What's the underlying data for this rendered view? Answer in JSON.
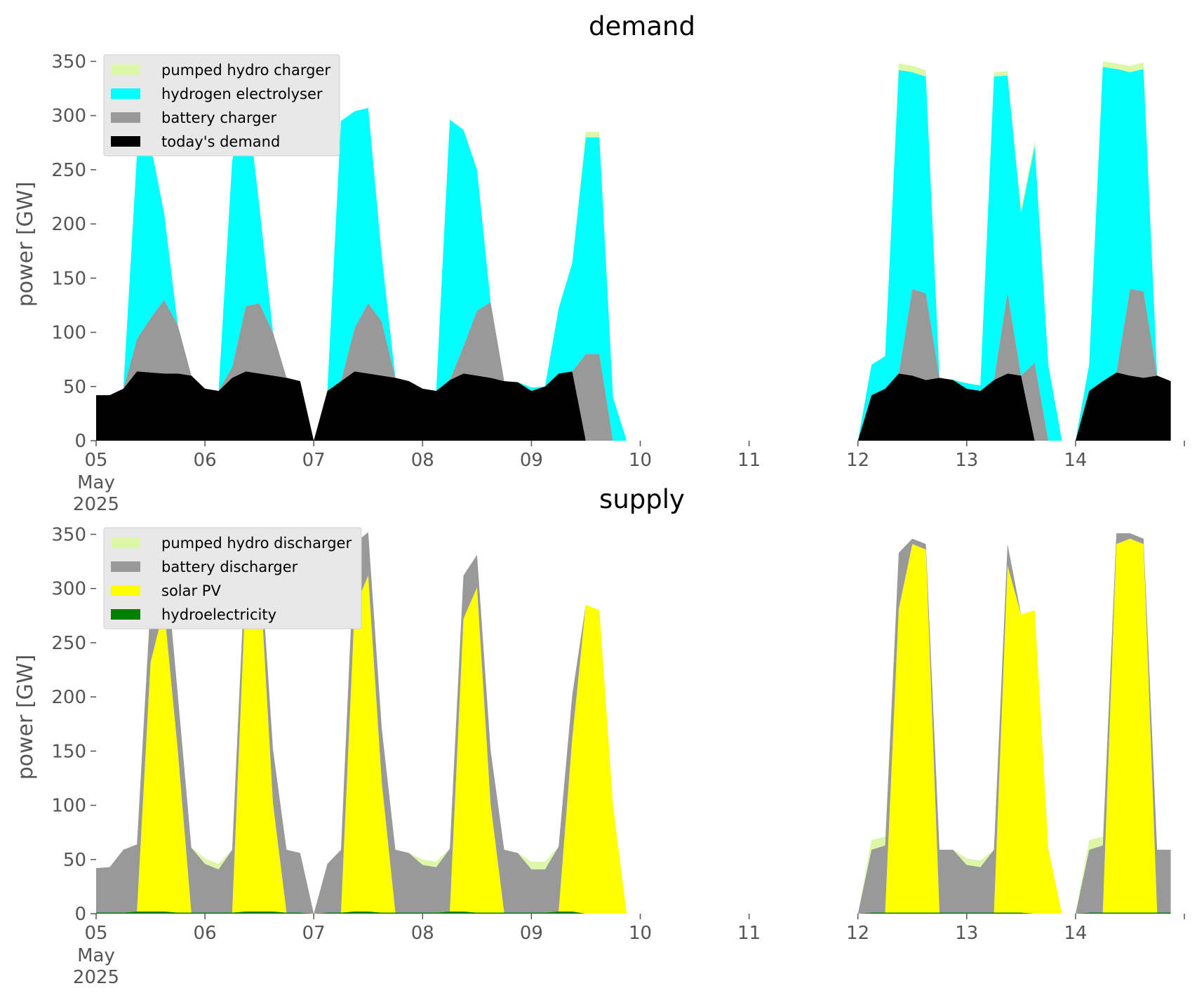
{
  "chart_data": [
    {
      "type": "area",
      "title": "demand",
      "ylabel": "power [GW]",
      "xlabel": "",
      "x_axis": {
        "ticks": [
          "05",
          "06",
          "07",
          "08",
          "09",
          "10",
          "11",
          "12",
          "13",
          "14"
        ],
        "first_tick_sublabel": [
          "May",
          "2025"
        ],
        "start": "2025-05-05 00:00",
        "end": "2025-05-14 24:00",
        "step_hours": 3
      },
      "ylim": [
        0,
        360
      ],
      "yticks": [
        0,
        50,
        100,
        150,
        200,
        250,
        300,
        350
      ],
      "grid": false,
      "stacked": true,
      "legend_position": "top-left",
      "legend": [
        "pumped hydro charger",
        "hydrogen electrolyser",
        "battery charger",
        "today's demand"
      ],
      "series": [
        {
          "name": "today's demand",
          "color": "#000000",
          "values": [
            42,
            42,
            48,
            64,
            63,
            62,
            62,
            60,
            48,
            46,
            58,
            64,
            62,
            60,
            58,
            55,
            0,
            46,
            55,
            64,
            62,
            60,
            58,
            55,
            48,
            46,
            56,
            62,
            60,
            58,
            55,
            54,
            46,
            50,
            62,
            64,
            0,
            0,
            0,
            0,
            null,
            null,
            null,
            null,
            null,
            null,
            null,
            null,
            null,
            null,
            null,
            null,
            null,
            null,
            null,
            null,
            0,
            42,
            48,
            62,
            60,
            56,
            58,
            56,
            48,
            46,
            56,
            62,
            60,
            0,
            0,
            0,
            0,
            46,
            55,
            63,
            60,
            58,
            60,
            55
          ]
        },
        {
          "name": "battery charger",
          "color": "#999999",
          "values": [
            0,
            0,
            0,
            30,
            50,
            68,
            45,
            0,
            0,
            0,
            10,
            60,
            65,
            40,
            0,
            0,
            0,
            0,
            0,
            40,
            65,
            50,
            0,
            0,
            0,
            0,
            0,
            25,
            60,
            70,
            0,
            0,
            0,
            0,
            0,
            0,
            80,
            80,
            0,
            0,
            null,
            null,
            null,
            null,
            null,
            null,
            null,
            null,
            null,
            null,
            null,
            null,
            null,
            null,
            null,
            null,
            0,
            0,
            0,
            0,
            80,
            80,
            0,
            0,
            0,
            0,
            0,
            75,
            0,
            72,
            0,
            0,
            0,
            0,
            0,
            0,
            80,
            80,
            0,
            0
          ]
        },
        {
          "name": "hydrogen electrolyser",
          "color": "#00ffff",
          "values": [
            0,
            0,
            0,
            170,
            160,
            80,
            0,
            0,
            0,
            0,
            190,
            200,
            90,
            0,
            0,
            0,
            0,
            0,
            240,
            200,
            180,
            60,
            0,
            0,
            0,
            0,
            240,
            200,
            130,
            0,
            0,
            0,
            3,
            0,
            60,
            100,
            200,
            200,
            40,
            0,
            null,
            null,
            null,
            null,
            null,
            null,
            null,
            null,
            null,
            null,
            null,
            null,
            null,
            null,
            null,
            null,
            0,
            28,
            30,
            280,
            200,
            200,
            0,
            0,
            5,
            5,
            280,
            200,
            150,
            200,
            70,
            0,
            0,
            24,
            290,
            280,
            200,
            205,
            0,
            0
          ]
        },
        {
          "name": "pumped hydro charger",
          "color": "#dcf7a8",
          "values": [
            0,
            0,
            0,
            0,
            0,
            0,
            0,
            0,
            0,
            0,
            0,
            0,
            0,
            0,
            0,
            0,
            0,
            0,
            0,
            0,
            0,
            0,
            0,
            0,
            0,
            0,
            0,
            0,
            0,
            0,
            0,
            0,
            0,
            0,
            0,
            0,
            5,
            5,
            0,
            0,
            null,
            null,
            null,
            null,
            null,
            null,
            null,
            null,
            null,
            null,
            null,
            null,
            null,
            null,
            null,
            null,
            0,
            0,
            0,
            6,
            6,
            6,
            0,
            0,
            0,
            0,
            4,
            4,
            4,
            4,
            0,
            0,
            0,
            0,
            5,
            5,
            6,
            6,
            0,
            0
          ]
        }
      ]
    },
    {
      "type": "area",
      "title": "supply",
      "ylabel": "power [GW]",
      "xlabel": "",
      "x_axis": {
        "ticks": [
          "05",
          "06",
          "07",
          "08",
          "09",
          "10",
          "11",
          "12",
          "13",
          "14"
        ],
        "first_tick_sublabel": [
          "May",
          "2025"
        ],
        "start": "2025-05-05 00:00",
        "end": "2025-05-14 24:00",
        "step_hours": 3
      },
      "ylim": [
        0,
        360
      ],
      "yticks": [
        0,
        50,
        100,
        150,
        200,
        250,
        300,
        350
      ],
      "grid": false,
      "stacked": true,
      "legend_position": "top-left",
      "legend": [
        "pumped hydro discharger",
        "battery discharger",
        "solar PV",
        "hydroelectricity"
      ],
      "series": [
        {
          "name": "hydroelectricity",
          "color": "#008000",
          "values": [
            1,
            1,
            1,
            2,
            2,
            2,
            1,
            1,
            1,
            1,
            1,
            2,
            2,
            2,
            1,
            1,
            0,
            1,
            1,
            2,
            2,
            1,
            1,
            1,
            1,
            1,
            2,
            2,
            1,
            1,
            1,
            1,
            1,
            1,
            2,
            2,
            0,
            0,
            0,
            0,
            null,
            null,
            null,
            null,
            null,
            null,
            null,
            null,
            null,
            null,
            null,
            null,
            null,
            null,
            null,
            null,
            0,
            1,
            1,
            1,
            1,
            1,
            1,
            1,
            1,
            1,
            1,
            1,
            1,
            0,
            0,
            0,
            0,
            1,
            1,
            1,
            1,
            1,
            1,
            1
          ]
        },
        {
          "name": "solar PV",
          "color": "#ffff00",
          "values": [
            0,
            0,
            0,
            0,
            230,
            280,
            150,
            0,
            0,
            0,
            0,
            300,
            320,
            100,
            0,
            0,
            0,
            0,
            0,
            280,
            310,
            120,
            0,
            0,
            0,
            0,
            0,
            270,
            300,
            100,
            0,
            0,
            0,
            0,
            0,
            160,
            285,
            280,
            100,
            0,
            null,
            null,
            null,
            null,
            null,
            null,
            null,
            null,
            null,
            null,
            null,
            null,
            null,
            null,
            null,
            null,
            0,
            0,
            0,
            280,
            340,
            335,
            0,
            0,
            0,
            0,
            0,
            320,
            275,
            280,
            60,
            0,
            0,
            0,
            0,
            340,
            345,
            340,
            0,
            0
          ]
        },
        {
          "name": "battery discharger",
          "color": "#999999",
          "values": [
            41,
            42,
            58,
            62,
            55,
            60,
            52,
            60,
            45,
            40,
            58,
            30,
            20,
            50,
            58,
            55,
            0,
            45,
            58,
            60,
            40,
            50,
            58,
            55,
            44,
            42,
            58,
            40,
            30,
            50,
            58,
            55,
            40,
            40,
            60,
            40,
            0,
            0,
            0,
            0,
            null,
            null,
            null,
            null,
            null,
            null,
            null,
            null,
            null,
            null,
            null,
            null,
            null,
            null,
            null,
            null,
            0,
            58,
            62,
            52,
            5,
            5,
            58,
            58,
            44,
            42,
            58,
            20,
            0,
            0,
            0,
            0,
            0,
            58,
            62,
            10,
            5,
            5,
            58,
            58
          ]
        },
        {
          "name": "pumped hydro discharger",
          "color": "#dcf7a8",
          "values": [
            0,
            0,
            0,
            0,
            0,
            0,
            0,
            0,
            5,
            5,
            0,
            0,
            0,
            0,
            0,
            0,
            0,
            0,
            0,
            0,
            0,
            0,
            0,
            0,
            5,
            5,
            0,
            0,
            0,
            0,
            0,
            0,
            7,
            7,
            0,
            0,
            0,
            0,
            0,
            0,
            null,
            null,
            null,
            null,
            null,
            null,
            null,
            null,
            null,
            null,
            null,
            null,
            null,
            null,
            null,
            null,
            0,
            9,
            8,
            0,
            0,
            0,
            0,
            0,
            6,
            6,
            0,
            0,
            0,
            0,
            0,
            0,
            0,
            9,
            8,
            0,
            0,
            0,
            0,
            0
          ]
        }
      ]
    }
  ]
}
